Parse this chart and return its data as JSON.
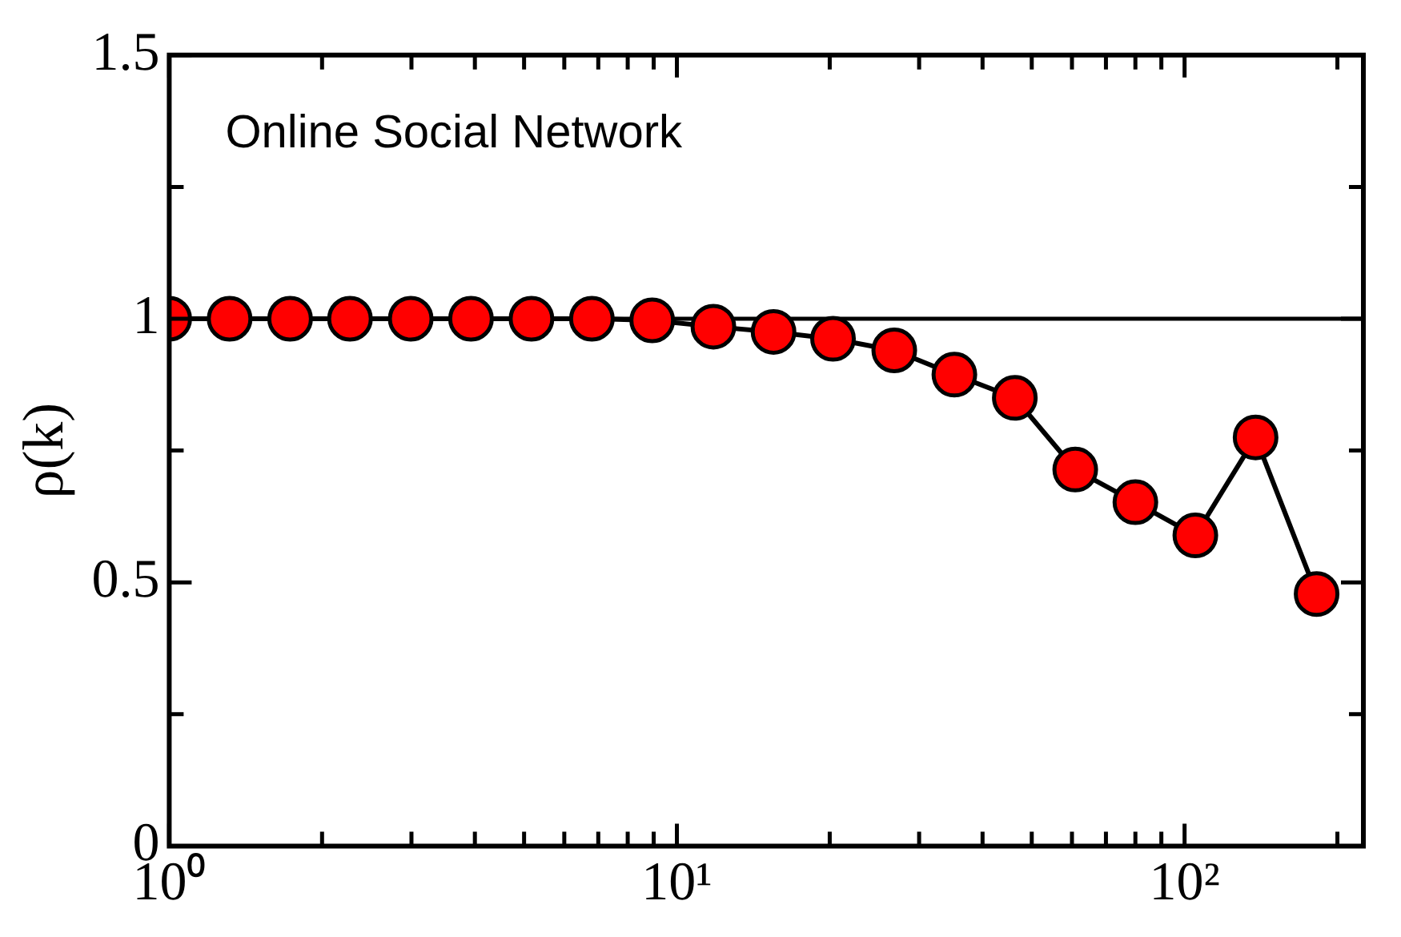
{
  "chart_data": {
    "type": "line",
    "ylabel": "ρ(k)",
    "annotations": [
      "Online Social Network"
    ],
    "x": [
      1,
      1.315,
      1.73,
      2.27,
      2.99,
      3.93,
      5.17,
      6.8,
      8.94,
      11.8,
      15.5,
      20.3,
      26.8,
      35.2,
      46.3,
      60.9,
      80,
      105,
      138,
      182
    ],
    "series": [
      {
        "color": "#ff0000",
        "values": [
          1,
          1,
          1,
          1,
          1,
          1,
          1,
          1,
          0.997,
          0.985,
          0.975,
          0.962,
          0.94,
          0.894,
          0.85,
          0.714,
          0.652,
          0.589,
          0.775,
          0.478
        ]
      }
    ],
    "log": "x",
    "xlim": [
      1,
      225
    ],
    "xticks": [
      {
        "value": 1,
        "label": "10⁰"
      },
      {
        "value": 2,
        "label": null
      },
      {
        "value": 3,
        "label": null
      },
      {
        "value": 4,
        "label": null
      },
      {
        "value": 5,
        "label": null
      },
      {
        "value": 6,
        "label": null
      },
      {
        "value": 7,
        "label": null
      },
      {
        "value": 8,
        "label": null
      },
      {
        "value": 9,
        "label": null
      },
      {
        "value": 10,
        "label": "10¹"
      },
      {
        "value": 20,
        "label": null
      },
      {
        "value": 30,
        "label": null
      },
      {
        "value": 40,
        "label": null
      },
      {
        "value": 50,
        "label": null
      },
      {
        "value": 60,
        "label": null
      },
      {
        "value": 70,
        "label": null
      },
      {
        "value": 80,
        "label": null
      },
      {
        "value": 90,
        "label": null
      },
      {
        "value": 100,
        "label": "10²"
      },
      {
        "value": 200,
        "label": null
      }
    ],
    "ylim": [
      0,
      1.5
    ],
    "yticks": [
      0,
      {
        "value": 0.25,
        "label": null
      },
      0.5,
      {
        "value": 0.75,
        "label": null
      },
      1,
      {
        "value": 1.25,
        "label": null
      },
      1.5
    ],
    "ref_lines": [
      {
        "axis": "y",
        "value": 1,
        "color": "#000000"
      }
    ],
    "marker": "circle",
    "line_style": "solid",
    "grid": false,
    "legend": false
  }
}
